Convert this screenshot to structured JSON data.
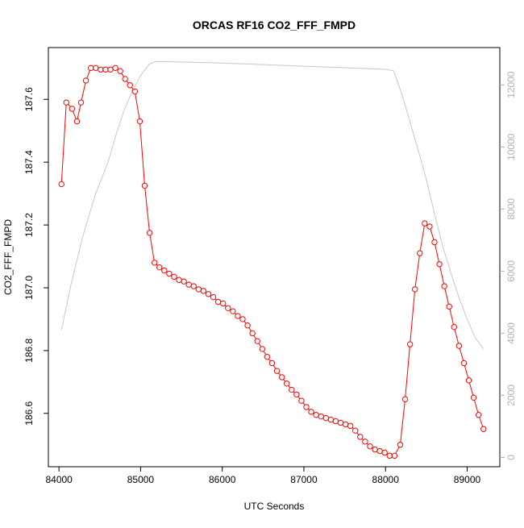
{
  "chart_data": {
    "type": "line",
    "title": "ORCAS RF16 CO2_FFF_FMPD",
    "xlabel": "UTC Seconds",
    "ylabel": "CO2_FFF_FMPD",
    "y2label": "",
    "xlim": [
      83870,
      89400
    ],
    "ylim": [
      186.43,
      187.765
    ],
    "y2lim": [
      -300,
      13200
    ],
    "x_ticks": [
      84000,
      85000,
      86000,
      87000,
      88000,
      89000
    ],
    "y_ticks": [
      186.6,
      186.8,
      187.0,
      187.2,
      187.4,
      187.6
    ],
    "y2_ticks": [
      0,
      2000,
      4000,
      6000,
      8000,
      10000,
      12000
    ],
    "grid": false,
    "series": [
      {
        "axis": "left",
        "style": "line+points",
        "color": "#ff0000",
        "points": [
          [
            84030,
            187.33
          ],
          [
            84090,
            187.59
          ],
          [
            84160,
            187.57
          ],
          [
            84220,
            187.53
          ],
          [
            84270,
            187.59
          ],
          [
            84330,
            187.66
          ],
          [
            84390,
            187.7
          ],
          [
            84450,
            187.7
          ],
          [
            84510,
            187.695
          ],
          [
            84570,
            187.695
          ],
          [
            84630,
            187.695
          ],
          [
            84690,
            187.7
          ],
          [
            84750,
            187.69
          ],
          [
            84810,
            187.665
          ],
          [
            84870,
            187.645
          ],
          [
            84930,
            187.625
          ],
          [
            84990,
            187.53
          ],
          [
            85050,
            187.325
          ],
          [
            85110,
            187.175
          ],
          [
            85170,
            187.08
          ],
          [
            85230,
            187.065
          ],
          [
            85290,
            187.055
          ],
          [
            85350,
            187.045
          ],
          [
            85410,
            187.035
          ],
          [
            85470,
            187.025
          ],
          [
            85530,
            187.02
          ],
          [
            85590,
            187.01
          ],
          [
            85650,
            187.005
          ],
          [
            85710,
            186.995
          ],
          [
            85770,
            186.99
          ],
          [
            85830,
            186.98
          ],
          [
            85890,
            186.97
          ],
          [
            85950,
            186.955
          ],
          [
            86010,
            186.95
          ],
          [
            86070,
            186.935
          ],
          [
            86130,
            186.925
          ],
          [
            86190,
            186.91
          ],
          [
            86250,
            186.9
          ],
          [
            86310,
            186.88
          ],
          [
            86370,
            186.855
          ],
          [
            86430,
            186.83
          ],
          [
            86490,
            186.805
          ],
          [
            86550,
            186.78
          ],
          [
            86610,
            186.76
          ],
          [
            86670,
            186.735
          ],
          [
            86730,
            186.715
          ],
          [
            86790,
            186.695
          ],
          [
            86850,
            186.675
          ],
          [
            86910,
            186.66
          ],
          [
            86970,
            186.64
          ],
          [
            87030,
            186.62
          ],
          [
            87090,
            186.605
          ],
          [
            87150,
            186.595
          ],
          [
            87210,
            186.59
          ],
          [
            87270,
            186.585
          ],
          [
            87330,
            186.58
          ],
          [
            87390,
            186.575
          ],
          [
            87450,
            186.57
          ],
          [
            87510,
            186.565
          ],
          [
            87570,
            186.56
          ],
          [
            87630,
            186.545
          ],
          [
            87690,
            186.525
          ],
          [
            87750,
            186.51
          ],
          [
            87810,
            186.495
          ],
          [
            87870,
            186.485
          ],
          [
            87930,
            186.48
          ],
          [
            87990,
            186.475
          ],
          [
            88050,
            186.465
          ],
          [
            88110,
            186.465
          ],
          [
            88180,
            186.5
          ],
          [
            88240,
            186.645
          ],
          [
            88300,
            186.82
          ],
          [
            88360,
            186.995
          ],
          [
            88420,
            187.11
          ],
          [
            88480,
            187.205
          ],
          [
            88540,
            187.195
          ],
          [
            88600,
            187.145
          ],
          [
            88660,
            187.075
          ],
          [
            88720,
            187.005
          ],
          [
            88780,
            186.94
          ],
          [
            88840,
            186.875
          ],
          [
            88900,
            186.815
          ],
          [
            88960,
            186.76
          ],
          [
            89020,
            186.705
          ],
          [
            89080,
            186.65
          ],
          [
            89140,
            186.595
          ],
          [
            89200,
            186.55
          ]
        ]
      },
      {
        "axis": "right",
        "style": "line",
        "color": "#c8c8c8",
        "points": [
          [
            84030,
            4100
          ],
          [
            84150,
            5600
          ],
          [
            84300,
            7200
          ],
          [
            84450,
            8500
          ],
          [
            84600,
            9500
          ],
          [
            84700,
            10400
          ],
          [
            84800,
            11200
          ],
          [
            84900,
            11800
          ],
          [
            85000,
            12300
          ],
          [
            85100,
            12650
          ],
          [
            85180,
            12750
          ],
          [
            85300,
            12750
          ],
          [
            86000,
            12700
          ],
          [
            86500,
            12650
          ],
          [
            87000,
            12600
          ],
          [
            87500,
            12550
          ],
          [
            88000,
            12500
          ],
          [
            88100,
            12450
          ],
          [
            88200,
            11700
          ],
          [
            88300,
            10800
          ],
          [
            88400,
            9900
          ],
          [
            88500,
            8950
          ],
          [
            88600,
            7850
          ],
          [
            88700,
            6800
          ],
          [
            88800,
            5950
          ],
          [
            88900,
            5150
          ],
          [
            89000,
            4450
          ],
          [
            89100,
            3850
          ],
          [
            89200,
            3500
          ]
        ]
      }
    ]
  }
}
